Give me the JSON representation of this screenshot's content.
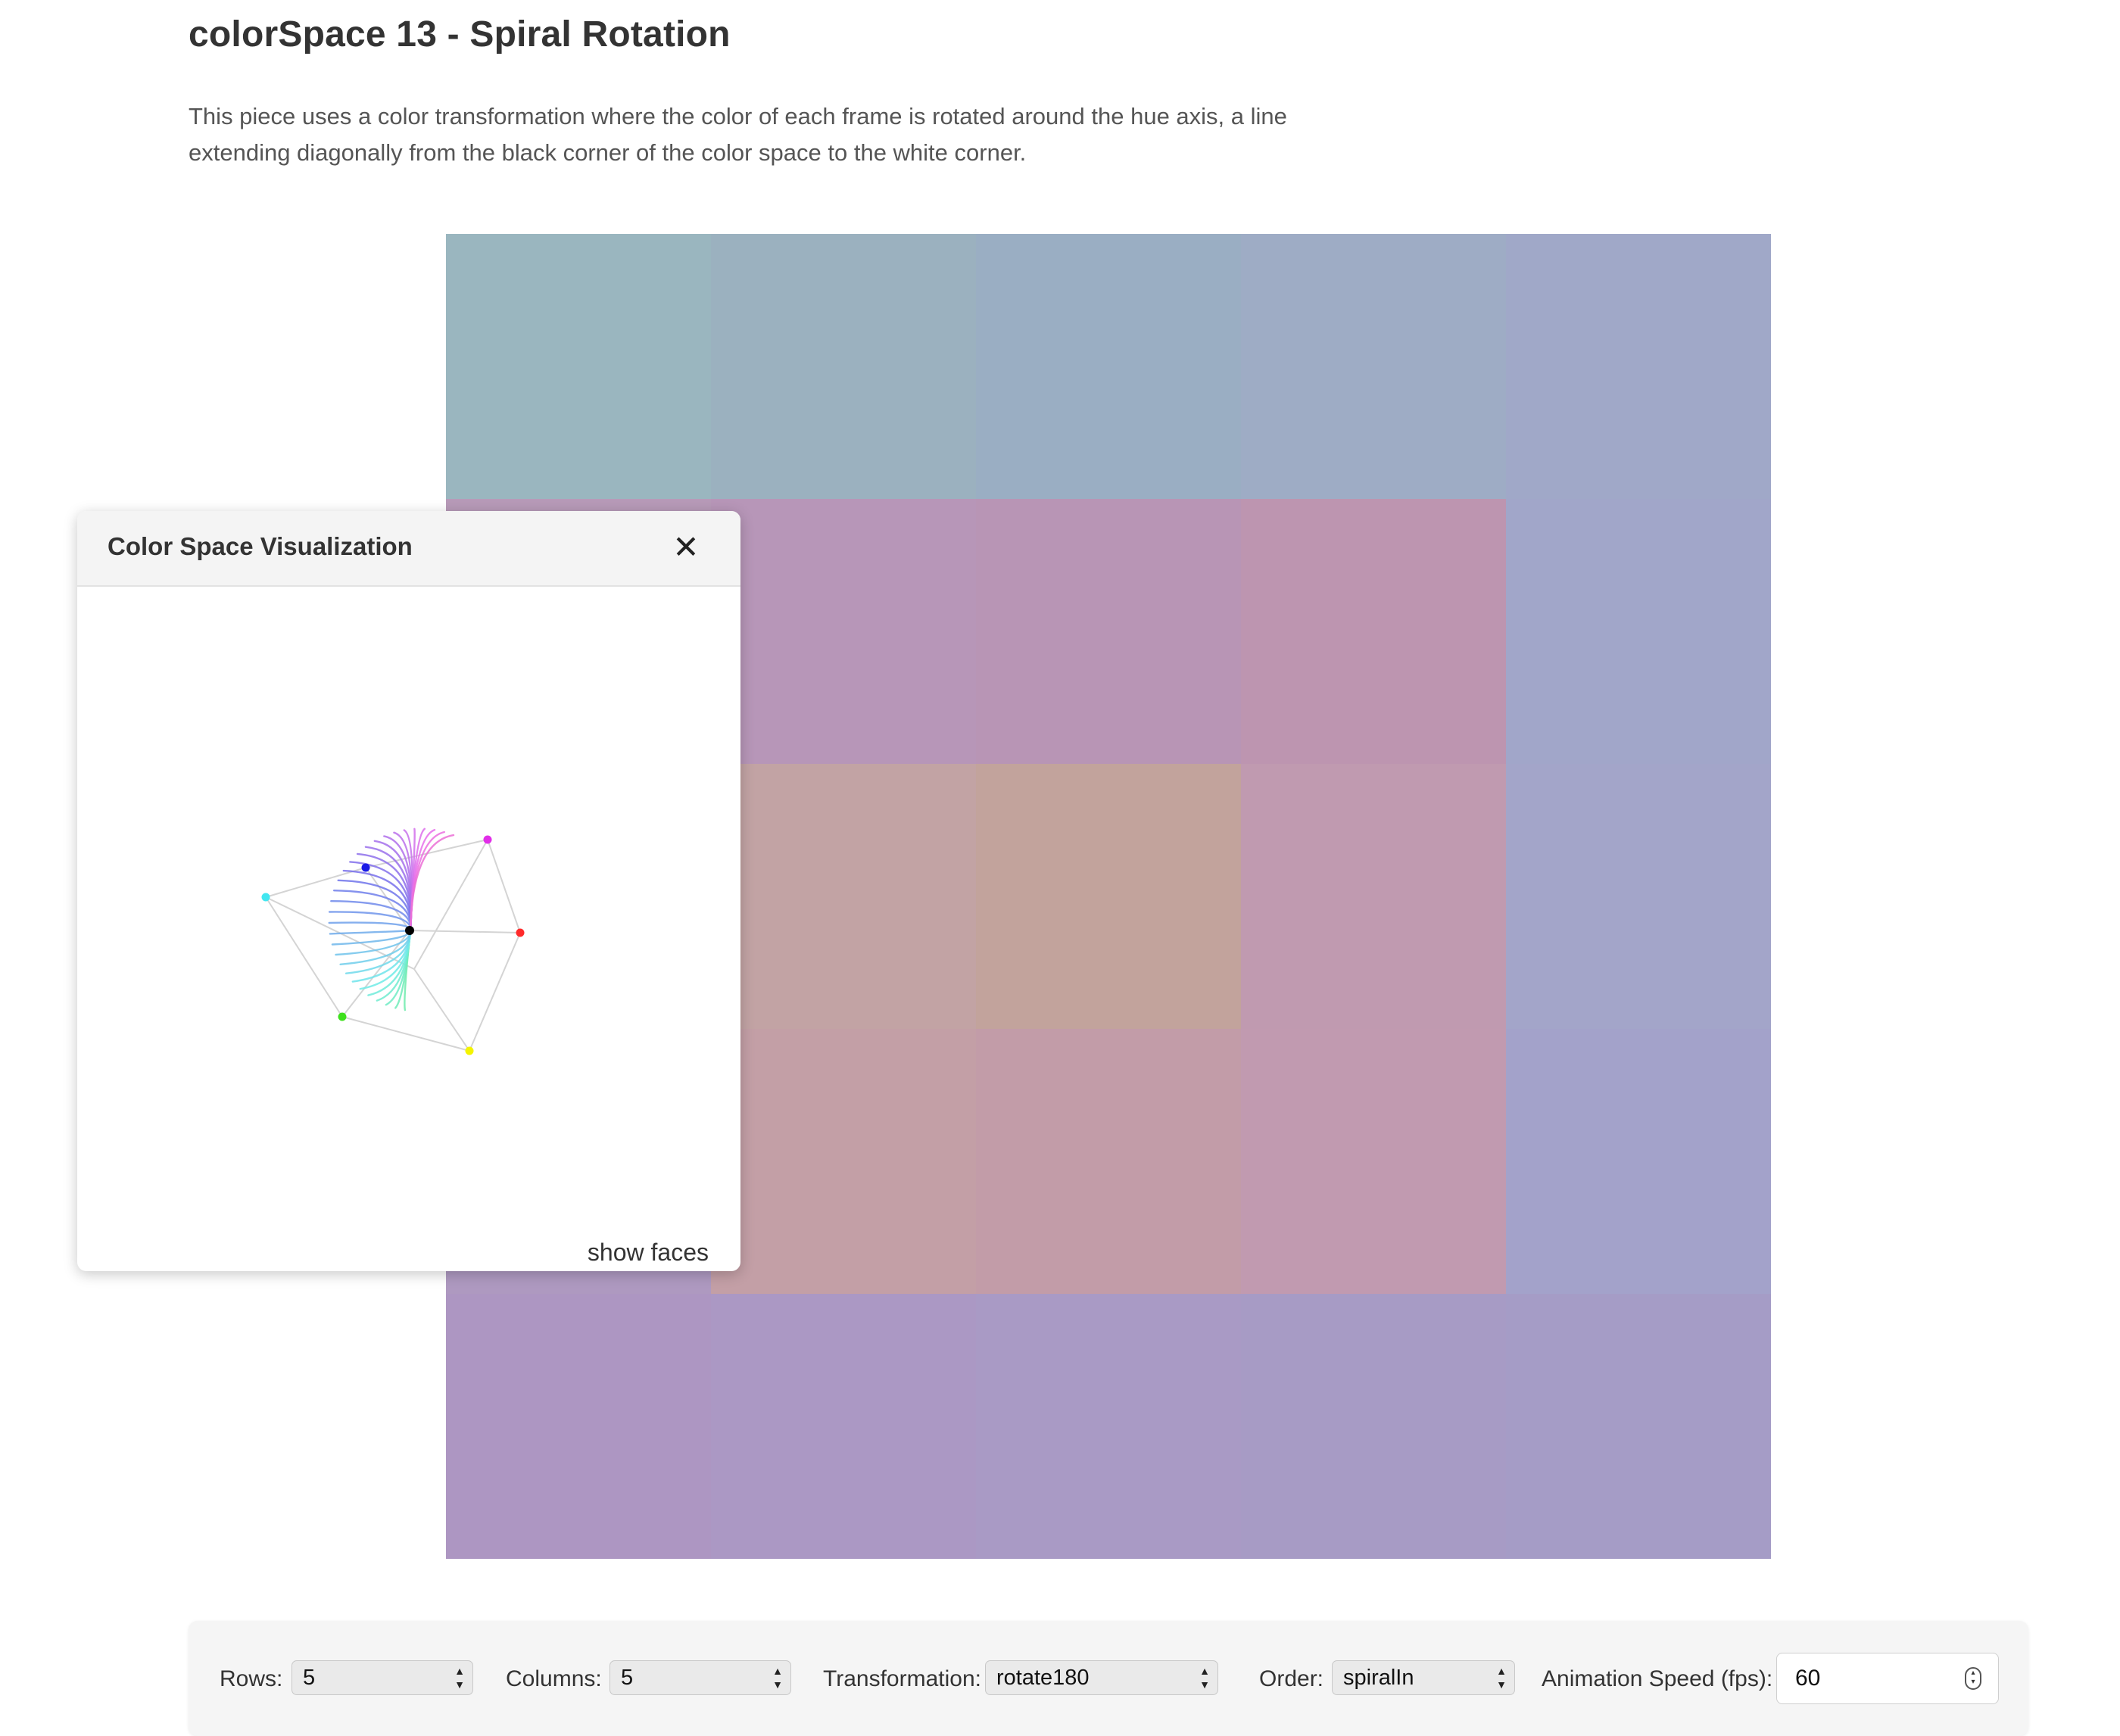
{
  "page": {
    "title": "colorSpace 13 - Spiral Rotation",
    "description": "This piece uses a color transformation where the color of each frame is rotated around the hue axis, a line extending diagonally from the black corner of the color space to the white corner."
  },
  "grid": {
    "rows": 5,
    "columns": 5,
    "cells": [
      [
        "#9ab6bf",
        "#9bb1bf",
        "#9aaec3",
        "#9eacc5",
        "#a0a8c8"
      ],
      [
        "#b79ab8",
        "#b796b8",
        "#b895b5",
        "#bd95b0",
        "#a1a6c9"
      ],
      [
        "#b09bbe",
        "#c2a3a4",
        "#c2a39c",
        "#c09ab0",
        "#a3a5c9"
      ],
      [
        "#ae99c0",
        "#c39fa6",
        "#c29ca8",
        "#c19ab0",
        "#a3a2ca"
      ],
      [
        "#ad96c2",
        "#ab98c4",
        "#a99ac5",
        "#a79bc5",
        "#a59cc6"
      ]
    ]
  },
  "visualization_panel": {
    "title": "Color Space Visualization",
    "close_label": "✕",
    "show_faces_label": "show faces",
    "vertex_colors": {
      "black": "#000000",
      "red": "#ff2a2a",
      "yellow": "#f4f400",
      "green": "#3ee01d",
      "cyan": "#42e6f0",
      "blue": "#1a1ae6",
      "magenta": "#e12ee8"
    }
  },
  "controls": {
    "rows_label": "Rows:",
    "rows_value": "5",
    "columns_label": "Columns:",
    "columns_value": "5",
    "transformation_label": "Transformation:",
    "transformation_value": "rotate180",
    "order_label": "Order:",
    "order_value": "spiralIn",
    "speed_label": "Animation Speed (fps):",
    "speed_value": "60"
  }
}
